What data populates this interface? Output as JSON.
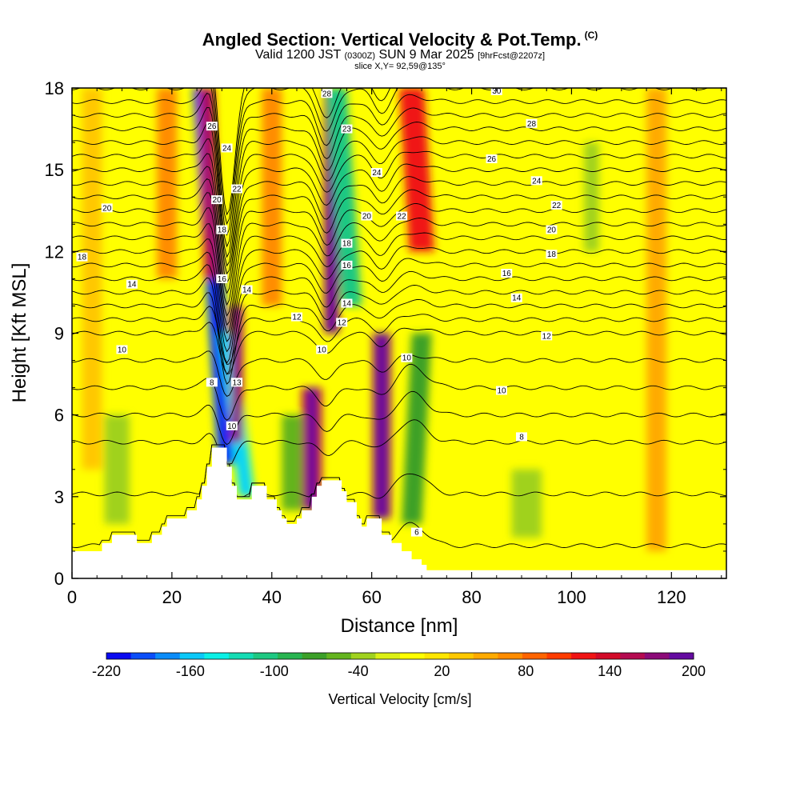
{
  "header": {
    "title": "Angled Section: Vertical Velocity & Pot.Temp.",
    "title_mark": "(C)",
    "valid_prefix": "Valid 1200 JST",
    "valid_utc": "(0300Z)",
    "valid_date": "SUN 9 Mar 2025",
    "forecast": "[9hrFcst@2207z]",
    "slice": "slice X,Y= 92,59@135°"
  },
  "chart_data": {
    "type": "heatmap",
    "xlabel": "Distance [nm]",
    "ylabel": "Height [Kft MSL]",
    "xlim": [
      0,
      131
    ],
    "ylim": [
      0,
      18
    ],
    "x_ticks": [
      0,
      20,
      40,
      60,
      80,
      100,
      120
    ],
    "y_ticks": [
      0,
      3,
      6,
      9,
      12,
      15,
      18
    ],
    "colorbar": {
      "label": "Vertical Velocity [cm/s]",
      "tick_labels": [
        "-220",
        "-160",
        "-100",
        "-40",
        "20",
        "80",
        "140",
        "200"
      ],
      "tick_values": [
        -220,
        -160,
        -100,
        -40,
        20,
        80,
        140,
        200
      ],
      "range": [
        -220,
        200
      ],
      "colors": [
        "#0a0af0",
        "#0a4ef8",
        "#0a8cf8",
        "#0ac8f8",
        "#0af0e6",
        "#14dcb4",
        "#1ec882",
        "#28b450",
        "#3ca028",
        "#64b41e",
        "#a0d21e",
        "#dcf014",
        "#ffff00",
        "#ffe600",
        "#ffc800",
        "#ffaa00",
        "#ff8c00",
        "#ff6400",
        "#ff3c00",
        "#f01414",
        "#d20a28",
        "#b40a50",
        "#8c0a78",
        "#640aa0"
      ]
    },
    "terrain_profile_kft": [
      [
        0,
        1.0
      ],
      [
        5,
        1.0
      ],
      [
        6,
        1.3
      ],
      [
        8,
        1.6
      ],
      [
        12,
        1.6
      ],
      [
        13,
        1.3
      ],
      [
        16,
        1.6
      ],
      [
        18,
        1.9
      ],
      [
        19,
        2.2
      ],
      [
        22,
        2.2
      ],
      [
        23,
        2.5
      ],
      [
        25,
        2.9
      ],
      [
        26,
        3.4
      ],
      [
        27,
        4.1
      ],
      [
        28,
        4.8
      ],
      [
        30,
        4.8
      ],
      [
        31,
        4.1
      ],
      [
        32,
        3.4
      ],
      [
        33,
        2.9
      ],
      [
        34,
        2.9
      ],
      [
        35,
        2.9
      ],
      [
        36,
        3.4
      ],
      [
        38,
        3.4
      ],
      [
        39,
        2.9
      ],
      [
        41,
        2.5
      ],
      [
        42,
        2.2
      ],
      [
        43,
        2.0
      ],
      [
        45,
        2.2
      ],
      [
        46,
        2.5
      ],
      [
        48,
        3.0
      ],
      [
        49,
        3.4
      ],
      [
        50,
        3.6
      ],
      [
        53,
        3.6
      ],
      [
        54,
        3.2
      ],
      [
        55,
        2.8
      ],
      [
        57,
        2.2
      ],
      [
        58,
        1.9
      ],
      [
        59,
        2.2
      ],
      [
        61,
        2.2
      ],
      [
        62,
        1.6
      ],
      [
        64,
        1.3
      ],
      [
        66,
        1.0
      ],
      [
        68,
        0.7
      ],
      [
        70,
        0.5
      ],
      [
        71,
        0.3
      ],
      [
        131,
        0.3
      ]
    ],
    "velocity_features": [
      {
        "x": 31,
        "y0": 4.2,
        "y1": 18,
        "lean": -5,
        "width": 1.8,
        "value": -200
      },
      {
        "x": 35,
        "y0": 3.0,
        "y1": 9,
        "lean": -4,
        "width": 1.6,
        "value": -140
      },
      {
        "x": 33,
        "y0": 5.0,
        "y1": 10,
        "lean": 0,
        "width": 1.2,
        "value": 160
      },
      {
        "x": 28,
        "y0": 11,
        "y1": 18,
        "lean": -1,
        "width": 1.5,
        "value": 140
      },
      {
        "x": 48,
        "y0": 2.5,
        "y1": 7,
        "lean": 0,
        "width": 2.0,
        "value": 150
      },
      {
        "x": 52,
        "y0": 9,
        "y1": 18,
        "lean": 0,
        "width": 1.5,
        "value": 180
      },
      {
        "x": 56,
        "y0": 10,
        "y1": 18,
        "lean": -3,
        "width": 2.0,
        "value": -100
      },
      {
        "x": 62,
        "y0": 2.2,
        "y1": 9,
        "lean": 0,
        "width": 1.8,
        "value": 180
      },
      {
        "x": 68,
        "y0": 2.0,
        "y1": 9,
        "lean": 2,
        "width": 2.0,
        "value": -80
      },
      {
        "x": 70,
        "y0": 12,
        "y1": 18,
        "lean": -2,
        "width": 2.5,
        "value": 120
      },
      {
        "x": 44,
        "y0": 2.5,
        "y1": 6,
        "lean": 0,
        "width": 2.0,
        "value": -60
      },
      {
        "x": 9,
        "y0": 2.0,
        "y1": 6,
        "lean": 0,
        "width": 2.5,
        "value": -40
      },
      {
        "x": 91,
        "y0": 1.5,
        "y1": 4,
        "lean": 0,
        "width": 3.0,
        "value": -40
      },
      {
        "x": 104,
        "y0": 12,
        "y1": 16,
        "lean": 0,
        "width": 1.5,
        "value": -40
      },
      {
        "x": 19,
        "y0": 11,
        "y1": 18,
        "lean": 0,
        "width": 2.0,
        "value": 60
      },
      {
        "x": 40,
        "y0": 10,
        "y1": 18,
        "lean": 0,
        "width": 2.0,
        "value": 60
      },
      {
        "x": 117,
        "y0": 1,
        "y1": 18,
        "lean": 0,
        "width": 2.0,
        "value": 50
      },
      {
        "x": 4,
        "y0": 4,
        "y1": 18,
        "lean": 0,
        "width": 2.0,
        "value": 40
      }
    ],
    "theta_contour_labels": [
      {
        "text": "26",
        "x": 28,
        "y": 16.6
      },
      {
        "text": "24",
        "x": 31,
        "y": 15.8
      },
      {
        "text": "22",
        "x": 33,
        "y": 14.3
      },
      {
        "text": "20",
        "x": 29,
        "y": 13.9
      },
      {
        "text": "18",
        "x": 30,
        "y": 12.8
      },
      {
        "text": "16",
        "x": 30,
        "y": 11.0
      },
      {
        "text": "14",
        "x": 35,
        "y": 10.6
      },
      {
        "text": "13",
        "x": 33,
        "y": 7.2
      },
      {
        "text": "10",
        "x": 32,
        "y": 5.6
      },
      {
        "text": "8",
        "x": 28,
        "y": 7.2
      },
      {
        "text": "28",
        "x": 51,
        "y": 17.8
      },
      {
        "text": "23",
        "x": 55,
        "y": 16.5
      },
      {
        "text": "24",
        "x": 61,
        "y": 14.9
      },
      {
        "text": "20",
        "x": 59,
        "y": 13.3
      },
      {
        "text": "18",
        "x": 55,
        "y": 12.3
      },
      {
        "text": "16",
        "x": 55,
        "y": 11.5
      },
      {
        "text": "14",
        "x": 55,
        "y": 10.1
      },
      {
        "text": "12",
        "x": 54,
        "y": 9.4
      },
      {
        "text": "12",
        "x": 45,
        "y": 9.6
      },
      {
        "text": "10",
        "x": 50,
        "y": 8.4
      },
      {
        "text": "10",
        "x": 67,
        "y": 8.1
      },
      {
        "text": "22",
        "x": 66,
        "y": 13.3
      },
      {
        "text": "30",
        "x": 85,
        "y": 17.9
      },
      {
        "text": "28",
        "x": 92,
        "y": 16.7
      },
      {
        "text": "26",
        "x": 84,
        "y": 15.4
      },
      {
        "text": "24",
        "x": 93,
        "y": 14.6
      },
      {
        "text": "22",
        "x": 97,
        "y": 13.7
      },
      {
        "text": "20",
        "x": 96,
        "y": 12.8
      },
      {
        "text": "18",
        "x": 96,
        "y": 11.9
      },
      {
        "text": "16",
        "x": 87,
        "y": 11.2
      },
      {
        "text": "14",
        "x": 89,
        "y": 10.3
      },
      {
        "text": "12",
        "x": 95,
        "y": 8.9
      },
      {
        "text": "10",
        "x": 86,
        "y": 6.9
      },
      {
        "text": "8",
        "x": 90,
        "y": 5.2
      },
      {
        "text": "6",
        "x": 69,
        "y": 1.7
      },
      {
        "text": "20",
        "x": 7,
        "y": 13.6
      },
      {
        "text": "18",
        "x": 2,
        "y": 11.8
      },
      {
        "text": "14",
        "x": 12,
        "y": 10.8
      },
      {
        "text": "10",
        "x": 10,
        "y": 8.4
      }
    ],
    "theta_contour_levels": [
      4,
      6,
      8,
      9,
      10,
      11,
      12,
      13,
      14,
      15,
      16,
      17,
      18,
      19,
      20,
      21,
      22,
      23,
      24,
      25,
      26,
      27,
      28,
      29,
      30,
      31
    ]
  }
}
